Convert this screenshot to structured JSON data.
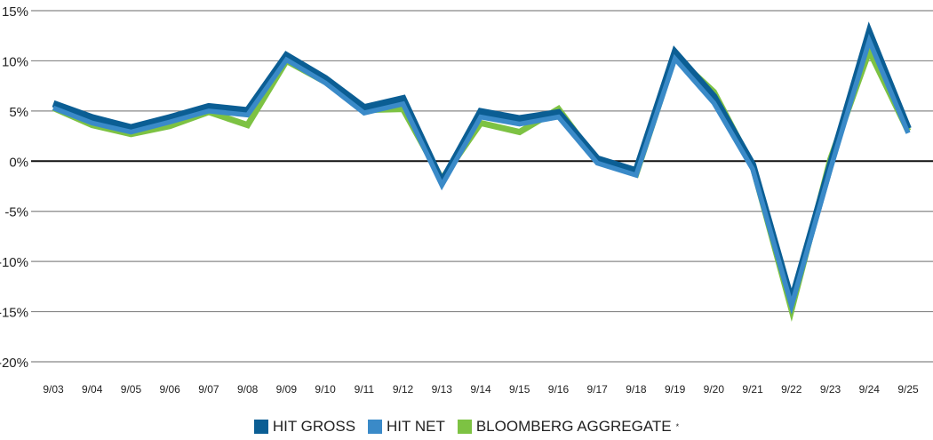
{
  "chart_data": {
    "type": "line",
    "title": "",
    "xlabel": "",
    "ylabel": "",
    "ylim": [
      -20,
      15
    ],
    "yticks": [
      15,
      10,
      5,
      0,
      -5,
      -10,
      -15,
      -20
    ],
    "ytick_labels": [
      "15%",
      "10%",
      "5%",
      "0%",
      "-5%",
      "-10%",
      "-15%",
      "-20%"
    ],
    "grid": true,
    "legend_position": "bottom-center",
    "categories": [
      "9/03",
      "9/04",
      "9/05",
      "9/06",
      "9/07",
      "9/08",
      "9/09",
      "9/10",
      "9/11",
      "9/12",
      "9/13",
      "9/14",
      "9/15",
      "9/16",
      "9/17",
      "9/18",
      "9/19",
      "9/20",
      "9/21",
      "9/22",
      "9/23",
      "9/24",
      "9/25"
    ],
    "series": [
      {
        "name": "BLOOMBERG AGGREGATE",
        "sup": "*",
        "color": "#7dc243",
        "values": [
          5.3,
          3.6,
          2.7,
          3.5,
          4.9,
          3.6,
          10.0,
          7.9,
          5.1,
          5.2,
          -1.8,
          3.8,
          2.9,
          5.2,
          0.0,
          -1.3,
          10.5,
          6.9,
          -0.5,
          -14.8,
          0.2,
          11.0,
          3.0
        ]
      },
      {
        "name": "HIT GROSS",
        "color": "#0b5e94",
        "values": [
          5.6,
          4.2,
          3.2,
          4.2,
          5.3,
          4.9,
          10.4,
          8.1,
          5.2,
          6.1,
          -2.2,
          4.8,
          4.1,
          4.7,
          0.1,
          -1.1,
          10.7,
          6.3,
          -0.5,
          -14.1,
          -0.5,
          12.7,
          3.1
        ]
      },
      {
        "name": "HIT NET",
        "color": "#3a8ac8",
        "values": [
          5.3,
          3.8,
          2.9,
          3.9,
          5.0,
          4.6,
          10.1,
          7.8,
          4.8,
          5.7,
          -2.4,
          4.4,
          3.7,
          4.4,
          -0.2,
          -1.4,
          10.2,
          5.8,
          -0.8,
          -14.4,
          -0.8,
          12.0,
          2.8
        ]
      }
    ],
    "legend_order": [
      1,
      2,
      0
    ]
  }
}
